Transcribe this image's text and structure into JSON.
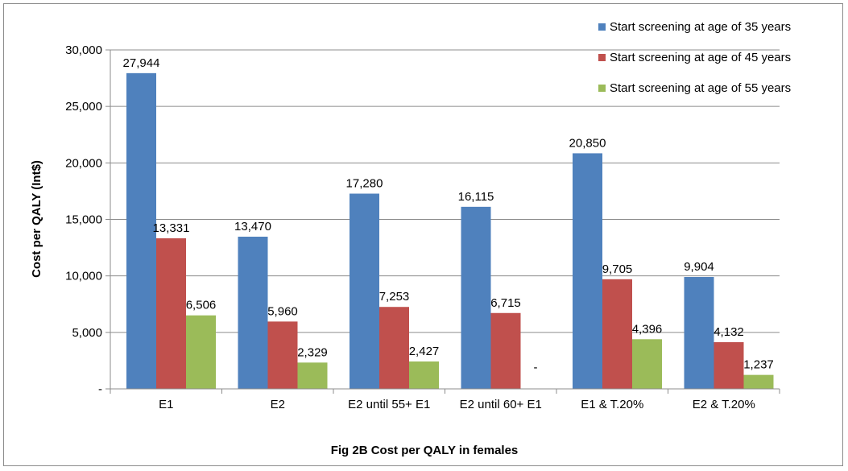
{
  "chart_data": {
    "type": "bar",
    "title": "Fig 2B  Cost per QALY in females",
    "xlabel": "",
    "ylabel": "Cost per QALY (Int$)",
    "ylim": [
      0,
      30000
    ],
    "yticks": [
      0,
      5000,
      10000,
      15000,
      20000,
      25000,
      30000
    ],
    "ytick_labels": [
      "-",
      "5,000",
      "10,000",
      "15,000",
      "20,000",
      "25,000",
      "30,000"
    ],
    "grid": true,
    "legend_position": "top-right",
    "categories": [
      "E1",
      "E2",
      "E2 until 55+ E1",
      "E2 until 60+ E1",
      "E1 & T.20%",
      "E2 & T.20%"
    ],
    "series": [
      {
        "name": "Start screening at age of 35 years",
        "color": "#4f81bd",
        "values": [
          27944,
          13470,
          17280,
          16115,
          20850,
          9904
        ],
        "labels": [
          "27,944",
          "13,470",
          "17,280",
          "16,115",
          "20,850",
          "9,904"
        ]
      },
      {
        "name": "Start screening at age of 45 years",
        "color": "#c0504d",
        "values": [
          13331,
          5960,
          7253,
          6715,
          9705,
          4132
        ],
        "labels": [
          "13,331",
          "5,960",
          "7,253",
          "6,715",
          "9,705",
          "4,132"
        ]
      },
      {
        "name": "Start screening at age of 55 years",
        "color": "#9bbb59",
        "values": [
          6506,
          2329,
          2427,
          0,
          4396,
          1237
        ],
        "labels": [
          "6,506",
          "2,329",
          "2,427",
          "-",
          "4,396",
          "1,237"
        ]
      }
    ]
  }
}
